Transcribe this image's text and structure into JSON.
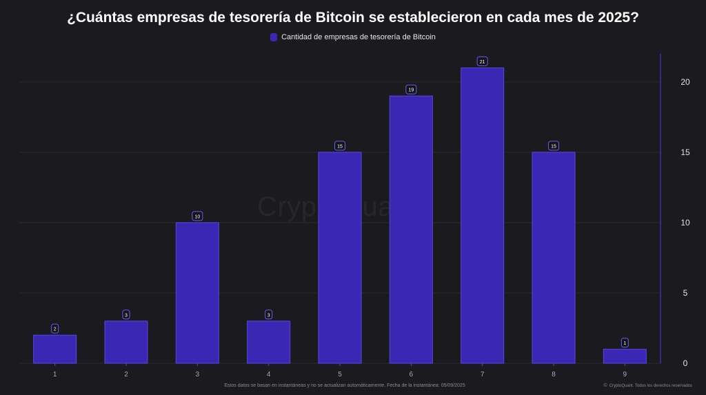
{
  "title": "¿Cuántas empresas de tesorería de Bitcoin se establecieron en cada mes de 2025?",
  "watermark": "CryptoQuant",
  "footer_note": "Estos datos se basan en instantáneas y no se actualizan automáticamente. Fecha de la instantánea: 05/09/2025",
  "copyright": "CryptoQuant. Todos los derechos reservados",
  "colors": {
    "background": "#1b1a1f",
    "bar": "#3a28b5",
    "bar_border": "#5a46de",
    "grid": "#2c2b33",
    "right_axis": "#3b2fb0"
  },
  "chart_data": {
    "type": "bar",
    "categories": [
      "1",
      "2",
      "3",
      "4",
      "5",
      "6",
      "7",
      "8",
      "9"
    ],
    "series": [
      {
        "name": "Cantidad de empresas de tesorería de Bitcoin",
        "values": [
          2,
          3,
          10,
          3,
          15,
          19,
          21,
          15,
          1
        ]
      }
    ],
    "yticks": [
      0,
      5,
      10,
      15,
      20
    ],
    "ylim": [
      0,
      22
    ],
    "y_axis_side": "right",
    "legend_position": "top-center",
    "grid": true,
    "data_labels": true
  }
}
